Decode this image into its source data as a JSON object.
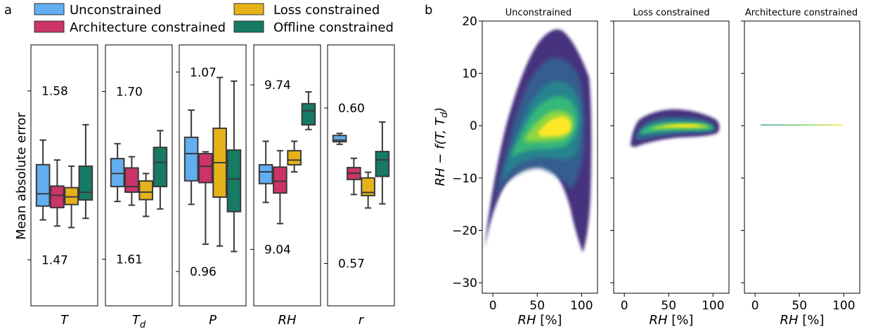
{
  "panel_labels": {
    "a": "a",
    "b": "b"
  },
  "legend": [
    {
      "name": "Unconstrained",
      "color": "#62aef0"
    },
    {
      "name": "Architecture constrained",
      "color": "#cc3366"
    },
    {
      "name": "Loss constrained",
      "color": "#e6b21a"
    },
    {
      "name": "Offline constrained",
      "color": "#167a65"
    }
  ],
  "panel_a_ylabel": "Mean absolute error",
  "chart_data": [
    {
      "type": "box",
      "panel": "a",
      "ylabel": "Mean absolute error",
      "series_names": [
        "Unconstrained",
        "Architecture constrained",
        "Loss constrained",
        "Offline constrained"
      ],
      "subplots": [
        {
          "xlabel": "T",
          "top_label": "1.58",
          "bottom_label": "1.47",
          "ylim": [
            1.44,
            1.61
          ],
          "label_values": [
            1.58,
            1.47
          ],
          "boxes": [
            {
              "series": "Unconstrained",
              "whislo": 1.496,
              "q1": 1.505,
              "med": 1.513,
              "q3": 1.532,
              "whishi": 1.548
            },
            {
              "series": "Architecture constrained",
              "whislo": 1.492,
              "q1": 1.504,
              "med": 1.512,
              "q3": 1.518,
              "whishi": 1.535
            },
            {
              "series": "Loss constrained",
              "whislo": 1.491,
              "q1": 1.506,
              "med": 1.511,
              "q3": 1.517,
              "whishi": 1.531
            },
            {
              "series": "Offline constrained",
              "whislo": 1.497,
              "q1": 1.509,
              "med": 1.514,
              "q3": 1.531,
              "whishi": 1.558
            }
          ]
        },
        {
          "xlabel": "T_d",
          "top_label": "1.70",
          "bottom_label": "1.61",
          "ylim": [
            1.585,
            1.725
          ],
          "label_values": [
            1.7,
            1.61
          ],
          "boxes": [
            {
              "series": "Unconstrained",
              "whislo": 1.641,
              "q1": 1.649,
              "med": 1.656,
              "q3": 1.664,
              "whishi": 1.672
            },
            {
              "series": "Architecture constrained",
              "whislo": 1.639,
              "q1": 1.646,
              "med": 1.649,
              "q3": 1.659,
              "whishi": 1.665
            },
            {
              "series": "Loss constrained",
              "whislo": 1.633,
              "q1": 1.642,
              "med": 1.646,
              "q3": 1.652,
              "whishi": 1.656
            },
            {
              "series": "Offline constrained",
              "whislo": 1.637,
              "q1": 1.649,
              "med": 1.662,
              "q3": 1.67,
              "whishi": 1.679
            }
          ]
        },
        {
          "xlabel": "P",
          "top_label": "1.07",
          "bottom_label": "0.96",
          "ylim": [
            0.941,
            1.085
          ],
          "label_values": [
            1.07,
            0.96
          ],
          "boxes": [
            {
              "series": "Unconstrained",
              "whislo": 0.997,
              "q1": 1.01,
              "med": 1.025,
              "q3": 1.034,
              "whishi": 1.049
            },
            {
              "series": "Architecture constrained",
              "whislo": 0.975,
              "q1": 1.009,
              "med": 1.018,
              "q3": 1.025,
              "whishi": 1.026
            },
            {
              "series": "Loss constrained",
              "whislo": 0.974,
              "q1": 1.001,
              "med": 1.02,
              "q3": 1.039,
              "whishi": 1.067
            },
            {
              "series": "Offline constrained",
              "whislo": 0.971,
              "q1": 0.993,
              "med": 1.011,
              "q3": 1.027,
              "whishi": 1.065
            }
          ]
        },
        {
          "xlabel": "RH",
          "top_label": "9.74",
          "bottom_label": "9.04",
          "ylim": [
            8.8,
            9.91
          ],
          "label_values": [
            9.74,
            9.04
          ],
          "boxes": [
            {
              "series": "Unconstrained",
              "whislo": 9.24,
              "q1": 9.32,
              "med": 9.37,
              "q3": 9.4,
              "whishi": 9.5
            },
            {
              "series": "Architecture constrained",
              "whislo": 9.15,
              "q1": 9.28,
              "med": 9.33,
              "q3": 9.39,
              "whishi": 9.46
            },
            {
              "series": "Loss constrained",
              "whislo": 9.37,
              "q1": 9.4,
              "med": 9.42,
              "q3": 9.46,
              "whishi": 9.5
            },
            {
              "series": "Offline constrained",
              "whislo": 9.55,
              "q1": 9.57,
              "med": 9.63,
              "q3": 9.66,
              "whishi": 9.71
            }
          ]
        },
        {
          "xlabel": "r",
          "top_label": "0.60",
          "bottom_label": "0.57",
          "ylim": [
            0.5618,
            0.6122
          ],
          "label_values": [
            0.6,
            0.57
          ],
          "boxes": [
            {
              "series": "Unconstrained",
              "whislo": 0.593,
              "q1": 0.5935,
              "med": 0.5938,
              "q3": 0.5947,
              "whishi": 0.5951
            },
            {
              "series": "Architecture constrained",
              "whislo": 0.5833,
              "q1": 0.5862,
              "med": 0.5874,
              "q3": 0.5885,
              "whishi": 0.5903
            },
            {
              "series": "Loss constrained",
              "whislo": 0.5807,
              "q1": 0.5831,
              "med": 0.5837,
              "q3": 0.5865,
              "whishi": 0.5876
            },
            {
              "series": "Offline constrained",
              "whislo": 0.5815,
              "q1": 0.5868,
              "med": 0.59,
              "q3": 0.5916,
              "whishi": 0.5973
            }
          ]
        }
      ]
    },
    {
      "type": "heatmap",
      "panel": "b",
      "ylabel": "RH − f(T, T_d)",
      "xlabel": "RH [%]",
      "ylim": [
        -32,
        20
      ],
      "xlim": [
        -12,
        118
      ],
      "yticks": [
        20,
        10,
        0,
        -10,
        -20,
        -30
      ],
      "xticks": [
        0,
        50,
        100
      ],
      "colormap": [
        "#440154",
        "#31688e",
        "#35b779",
        "#fde725"
      ],
      "subplots": [
        {
          "title": "Unconstrained",
          "spread": "wide: from about -25 at RH 0 to about +15 near RH 55, back to about -20 at RH 100"
        },
        {
          "title": "Loss constrained",
          "spread": "narrow: about ±5 around 0 for RH 10 to 105"
        },
        {
          "title": "Architecture constrained",
          "spread": "zero: a flat line at 0 for RH 5 to 100"
        }
      ]
    }
  ]
}
